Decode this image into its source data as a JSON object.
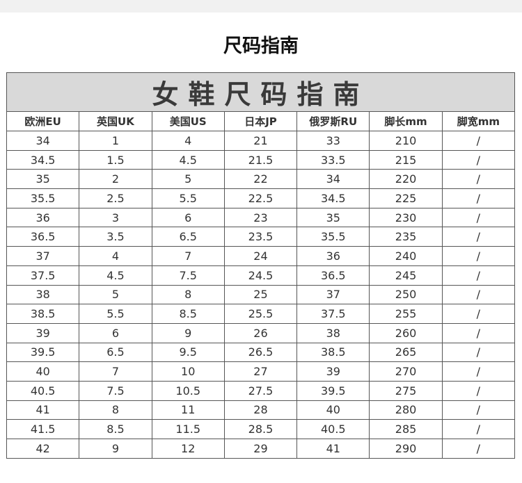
{
  "header": {
    "title": "尺码指南"
  },
  "table": {
    "title": "女鞋尺码指南",
    "columns": [
      "欧洲EU",
      "英国UK",
      "美国US",
      "日本JP",
      "俄罗斯RU",
      "脚长mm",
      "脚宽mm"
    ],
    "rows": [
      [
        "34",
        "1",
        "4",
        "21",
        "33",
        "210",
        "/"
      ],
      [
        "34.5",
        "1.5",
        "4.5",
        "21.5",
        "33.5",
        "215",
        "/"
      ],
      [
        "35",
        "2",
        "5",
        "22",
        "34",
        "220",
        "/"
      ],
      [
        "35.5",
        "2.5",
        "5.5",
        "22.5",
        "34.5",
        "225",
        "/"
      ],
      [
        "36",
        "3",
        "6",
        "23",
        "35",
        "230",
        "/"
      ],
      [
        "36.5",
        "3.5",
        "6.5",
        "23.5",
        "35.5",
        "235",
        "/"
      ],
      [
        "37",
        "4",
        "7",
        "24",
        "36",
        "240",
        "/"
      ],
      [
        "37.5",
        "4.5",
        "7.5",
        "24.5",
        "36.5",
        "245",
        "/"
      ],
      [
        "38",
        "5",
        "8",
        "25",
        "37",
        "250",
        "/"
      ],
      [
        "38.5",
        "5.5",
        "8.5",
        "25.5",
        "37.5",
        "255",
        "/"
      ],
      [
        "39",
        "6",
        "9",
        "26",
        "38",
        "260",
        "/"
      ],
      [
        "39.5",
        "6.5",
        "9.5",
        "26.5",
        "38.5",
        "265",
        "/"
      ],
      [
        "40",
        "7",
        "10",
        "27",
        "39",
        "270",
        "/"
      ],
      [
        "40.5",
        "7.5",
        "10.5",
        "27.5",
        "39.5",
        "275",
        "/"
      ],
      [
        "41",
        "8",
        "11",
        "28",
        "40",
        "280",
        "/"
      ],
      [
        "41.5",
        "8.5",
        "11.5",
        "28.5",
        "40.5",
        "285",
        "/"
      ],
      [
        "42",
        "9",
        "12",
        "29",
        "41",
        "290",
        "/"
      ]
    ]
  }
}
